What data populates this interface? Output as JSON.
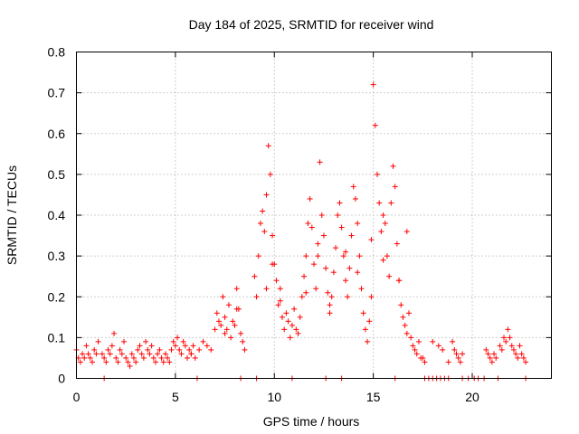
{
  "chart_data": {
    "type": "scatter",
    "title": "Day 184 of 2025, SRMTID for receiver wind",
    "xlabel": "GPS time / hours",
    "ylabel": "SRMTID / TECUs",
    "xlim": [
      0,
      24
    ],
    "ylim": [
      0,
      0.8
    ],
    "xticks": [
      0,
      5,
      10,
      15,
      20
    ],
    "yticks": [
      0,
      0.1,
      0.2,
      0.3,
      0.4,
      0.5,
      0.6,
      0.7,
      0.8
    ],
    "grid": true,
    "series": [
      {
        "name": "SRMTID",
        "color": "#ff0000",
        "marker": "plus",
        "x": [
          0.0,
          0.1,
          0.2,
          0.3,
          0.4,
          0.5,
          0.6,
          0.7,
          0.8,
          0.9,
          1.0,
          1.1,
          1.3,
          1.4,
          1.5,
          1.6,
          1.7,
          1.8,
          1.9,
          2.0,
          2.1,
          2.2,
          2.3,
          2.4,
          2.5,
          2.6,
          2.7,
          2.8,
          2.9,
          3.0,
          3.1,
          3.2,
          3.3,
          3.4,
          3.5,
          3.6,
          3.7,
          3.8,
          3.9,
          4.0,
          4.1,
          4.2,
          4.3,
          4.4,
          4.5,
          4.6,
          4.7,
          4.8,
          4.9,
          5.0,
          5.1,
          5.2,
          5.3,
          5.4,
          5.5,
          5.6,
          5.7,
          5.8,
          5.9,
          6.0,
          6.2,
          6.4,
          6.6,
          6.8,
          7.0,
          7.1,
          7.2,
          7.3,
          7.4,
          7.5,
          7.6,
          7.7,
          7.8,
          7.9,
          8.0,
          8.1,
          8.2,
          8.3,
          8.4,
          8.5,
          9.0,
          9.1,
          9.2,
          9.3,
          9.4,
          9.5,
          9.6,
          9.7,
          9.8,
          9.9,
          10.0,
          10.1,
          10.2,
          10.3,
          10.4,
          10.5,
          10.6,
          10.7,
          10.8,
          10.9,
          11.0,
          11.1,
          11.2,
          11.3,
          11.4,
          11.5,
          11.6,
          11.7,
          11.8,
          11.9,
          12.0,
          12.1,
          12.2,
          12.3,
          12.4,
          12.5,
          12.6,
          12.7,
          12.8,
          12.9,
          13.0,
          13.1,
          13.2,
          13.3,
          13.4,
          13.5,
          13.6,
          13.7,
          13.8,
          13.9,
          14.0,
          14.1,
          14.2,
          14.3,
          14.4,
          14.5,
          14.6,
          14.7,
          14.8,
          14.9,
          15.0,
          15.1,
          15.2,
          15.3,
          15.4,
          15.5,
          15.6,
          15.7,
          15.8,
          15.9,
          16.0,
          16.1,
          16.2,
          16.3,
          16.4,
          16.5,
          16.6,
          16.7,
          16.8,
          16.9,
          17.0,
          17.1,
          17.2,
          17.3,
          17.4,
          17.5,
          17.6,
          18.0,
          18.3,
          18.5,
          18.8,
          19.0,
          19.1,
          19.2,
          19.3,
          19.4,
          19.5,
          20.7,
          20.8,
          20.9,
          21.0,
          21.1,
          21.2,
          21.4,
          21.5,
          21.6,
          21.7,
          21.8,
          21.9,
          22.0,
          22.1,
          22.2,
          22.3,
          22.4,
          22.5,
          22.6,
          22.7,
          1.4,
          6.1,
          8.3,
          9.1,
          10.9,
          12.6,
          13.4,
          16.1,
          17.6,
          17.8,
          18.0,
          18.2,
          18.4,
          18.6,
          18.8,
          19.5,
          19.8,
          20.1,
          20.3,
          20.6,
          21.3,
          22.7,
          5.8,
          7.5,
          8.1,
          9.6,
          9.9,
          10.3,
          11.6,
          12.2,
          12.8,
          13.6,
          14.2,
          14.9,
          15.5,
          16.3,
          16.7
        ],
        "y": [
          0.07,
          0.05,
          0.04,
          0.06,
          0.05,
          0.08,
          0.06,
          0.05,
          0.04,
          0.07,
          0.06,
          0.09,
          0.06,
          0.05,
          0.04,
          0.07,
          0.06,
          0.08,
          0.11,
          0.05,
          0.04,
          0.07,
          0.06,
          0.09,
          0.05,
          0.04,
          0.03,
          0.06,
          0.05,
          0.04,
          0.07,
          0.08,
          0.06,
          0.05,
          0.09,
          0.07,
          0.06,
          0.08,
          0.05,
          0.04,
          0.06,
          0.07,
          0.05,
          0.04,
          0.06,
          0.05,
          0.04,
          0.07,
          0.09,
          0.08,
          0.1,
          0.07,
          0.06,
          0.09,
          0.08,
          0.05,
          0.07,
          0.06,
          0.08,
          0.05,
          0.07,
          0.09,
          0.08,
          0.07,
          0.12,
          0.16,
          0.14,
          0.13,
          0.2,
          0.15,
          0.12,
          0.18,
          0.1,
          0.14,
          0.13,
          0.22,
          0.17,
          0.11,
          0.09,
          0.07,
          0.25,
          0.2,
          0.3,
          0.38,
          0.41,
          0.36,
          0.45,
          0.57,
          0.5,
          0.35,
          0.28,
          0.24,
          0.18,
          0.22,
          0.15,
          0.12,
          0.16,
          0.14,
          0.1,
          0.13,
          0.17,
          0.12,
          0.11,
          0.15,
          0.2,
          0.25,
          0.3,
          0.38,
          0.44,
          0.37,
          0.28,
          0.22,
          0.3,
          0.53,
          0.4,
          0.35,
          0.27,
          0.21,
          0.16,
          0.2,
          0.26,
          0.32,
          0.4,
          0.43,
          0.37,
          0.3,
          0.24,
          0.2,
          0.27,
          0.35,
          0.47,
          0.44,
          0.38,
          0.3,
          0.22,
          0.16,
          0.12,
          0.09,
          0.14,
          0.2,
          0.72,
          0.62,
          0.5,
          0.43,
          0.36,
          0.4,
          0.38,
          0.3,
          0.25,
          0.43,
          0.52,
          0.47,
          0.33,
          0.24,
          0.18,
          0.15,
          0.13,
          0.11,
          0.16,
          0.1,
          0.08,
          0.07,
          0.06,
          0.09,
          0.05,
          0.05,
          0.04,
          0.09,
          0.08,
          0.07,
          0.04,
          0.09,
          0.07,
          0.06,
          0.05,
          0.04,
          0.06,
          0.07,
          0.06,
          0.05,
          0.04,
          0.06,
          0.05,
          0.08,
          0.07,
          0.1,
          0.09,
          0.12,
          0.1,
          0.08,
          0.07,
          0.06,
          0.05,
          0.08,
          0.06,
          0.05,
          0.04,
          0.0,
          0.0,
          0.0,
          0.0,
          0.0,
          0.0,
          0.0,
          0.0,
          0.0,
          0.0,
          0.0,
          0.0,
          0.0,
          0.0,
          0.0,
          0.0,
          0.0,
          0.0,
          0.0,
          0.0,
          0.0,
          0.0,
          0.06,
          0.11,
          0.17,
          0.22,
          0.28,
          0.19,
          0.21,
          0.33,
          0.18,
          0.31,
          0.26,
          0.34,
          0.29,
          0.24,
          0.36
        ]
      }
    ]
  }
}
